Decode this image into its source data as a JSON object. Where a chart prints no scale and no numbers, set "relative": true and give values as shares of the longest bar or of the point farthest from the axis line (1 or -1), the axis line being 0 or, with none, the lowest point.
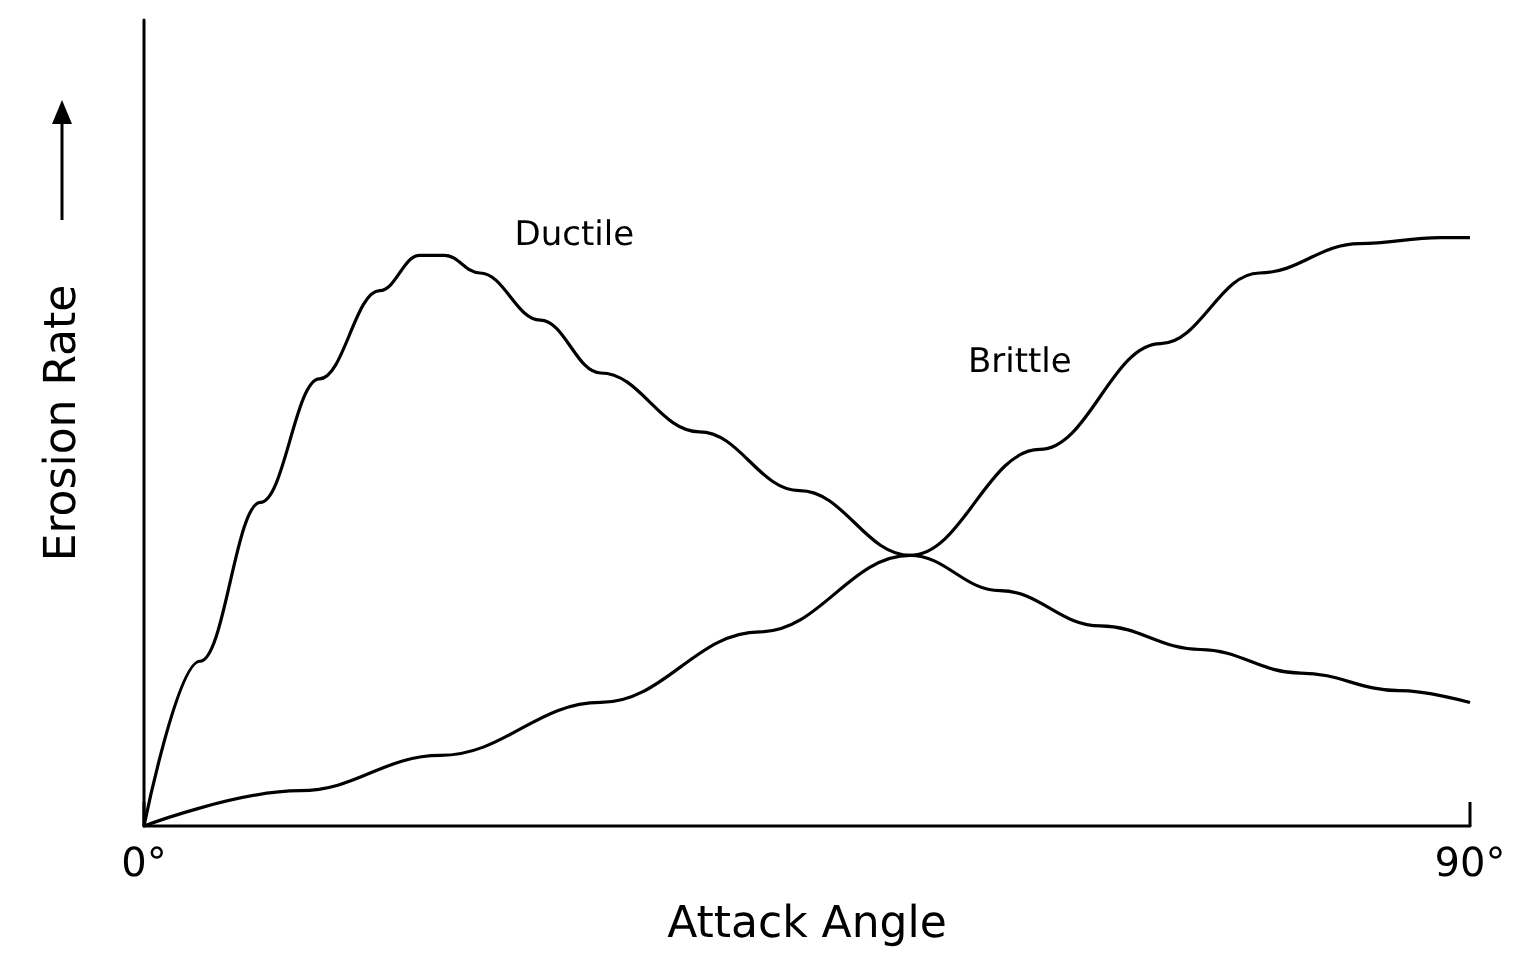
{
  "chart_data": {
    "type": "line",
    "xlabel": "Attack Angle",
    "ylabel": "Erosion Rate",
    "relative": true,
    "xlim": [
      0,
      90
    ],
    "xticks": [
      {
        "value": 0,
        "label": "0°"
      },
      {
        "value": 90,
        "label": "90°"
      }
    ],
    "grid": false,
    "legend": false,
    "marker": "none",
    "line_style": "solid",
    "series": [
      {
        "name": "Ductile",
        "color": "#000000",
        "x": [
          0,
          3.8,
          7.9,
          11.9,
          16.0,
          18.7,
          20.4,
          22.8,
          26.9,
          31.0,
          37.7,
          44.5,
          52.0,
          58.1,
          64.9,
          71.7,
          78.5,
          85.2,
          90
        ],
        "values": [
          0,
          0.28,
          0.55,
          0.76,
          0.91,
          0.97,
          0.97,
          0.94,
          0.86,
          0.77,
          0.67,
          0.57,
          0.46,
          0.4,
          0.34,
          0.3,
          0.26,
          0.23,
          0.21
        ]
      },
      {
        "name": "Brittle",
        "color": "#000000",
        "x": [
          0,
          10.6,
          20.1,
          31.0,
          41.8,
          52.0,
          60.8,
          69.0,
          75.7,
          82.5,
          88.0,
          90
        ],
        "values": [
          0,
          0.06,
          0.12,
          0.21,
          0.33,
          0.46,
          0.64,
          0.82,
          0.94,
          0.99,
          1,
          1
        ]
      }
    ]
  }
}
